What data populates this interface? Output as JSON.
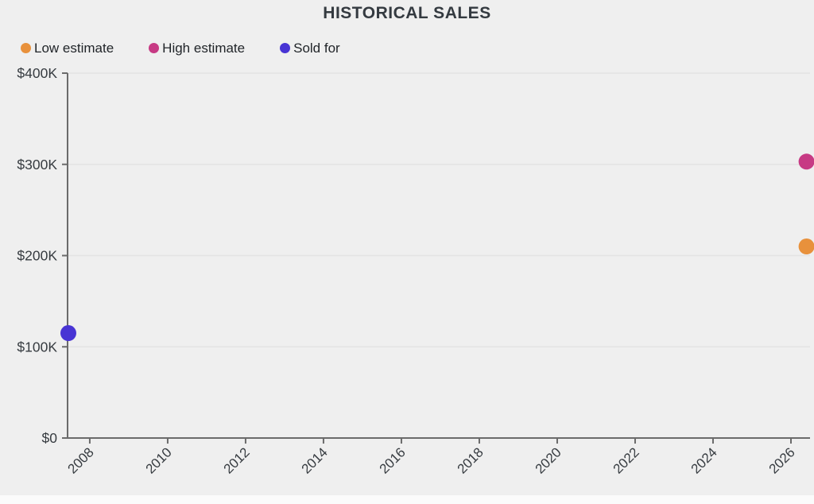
{
  "page": {
    "background_color": "#efefef",
    "title_color": "#343a40",
    "axis_line_color": "#6b6b6b",
    "grid_line_color": "#e3e3e3",
    "tick_label_color": "#363b40",
    "legend_text_color": "#212529"
  },
  "chart_data": {
    "type": "scatter",
    "title": "HISTORICAL SALES",
    "xlabel": "",
    "ylabel": "",
    "xlim": [
      2007.43,
      2026.49
    ],
    "ylim": [
      0,
      400000
    ],
    "x_ticks": [
      2008,
      2010,
      2012,
      2014,
      2016,
      2018,
      2020,
      2022,
      2024,
      2026
    ],
    "x_tick_labels": [
      "2008",
      "2010",
      "2012",
      "2014",
      "2016",
      "2018",
      "2020",
      "2022",
      "2024",
      "2026"
    ],
    "y_ticks": [
      0,
      100000,
      200000,
      300000,
      400000
    ],
    "y_tick_labels": [
      "$0",
      "$100K",
      "$200K",
      "$300K",
      "$400K"
    ],
    "grid": "horizontal",
    "legend_position": "top-left",
    "marker_radius": 10,
    "series": [
      {
        "name": "Low estimate",
        "color": "#e8913c",
        "points": [
          {
            "x": 2026.4,
            "y": 210000
          }
        ]
      },
      {
        "name": "High estimate",
        "color": "#c73a84",
        "points": [
          {
            "x": 2026.4,
            "y": 303000
          }
        ]
      },
      {
        "name": "Sold for",
        "color": "#4834d4",
        "points": [
          {
            "x": 2007.45,
            "y": 115000
          }
        ]
      }
    ]
  }
}
